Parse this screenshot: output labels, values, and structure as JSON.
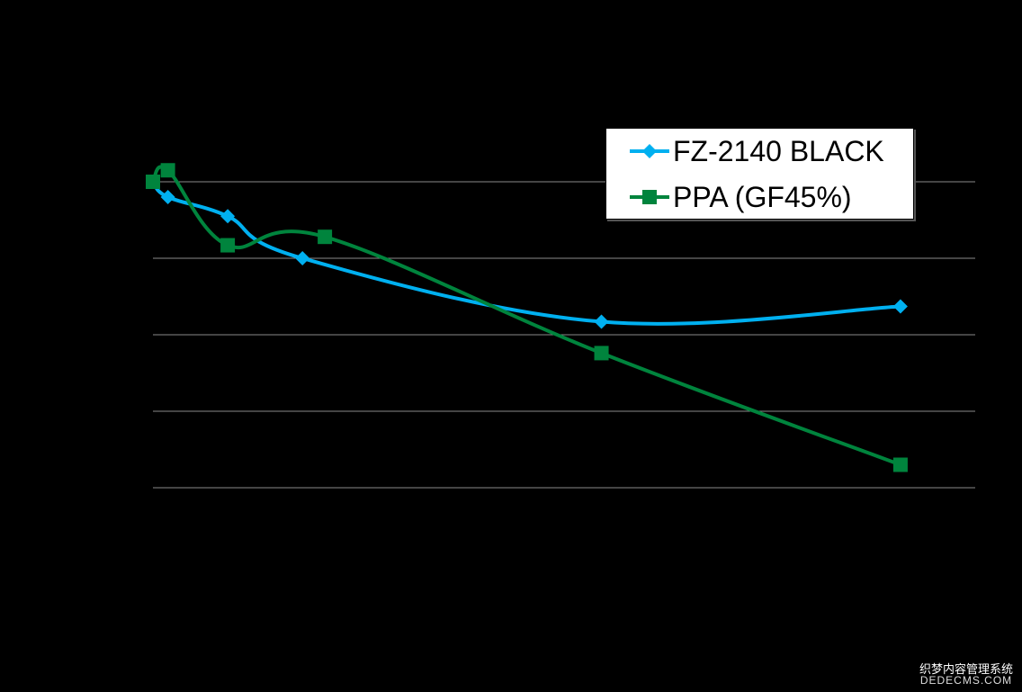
{
  "chart_data": {
    "type": "line",
    "title": "",
    "xlabel": "",
    "ylabel": "",
    "grid": true,
    "legend_position": "top-right",
    "xlim": [
      0,
      550
    ],
    "ylim": [
      0,
      5
    ],
    "series": [
      {
        "name": "FZ-2140 BLACK",
        "color": "#00B0F0",
        "marker": "diamond",
        "smooth": true,
        "x": [
          0,
          10,
          50,
          100,
          300,
          500
        ],
        "y": [
          4.0,
          3.8,
          3.55,
          3.0,
          2.17,
          2.37
        ]
      },
      {
        "name": "PPA (GF45%)",
        "color": "#00843D",
        "marker": "square",
        "smooth": true,
        "x": [
          0,
          10,
          50,
          115,
          300,
          500
        ],
        "y": [
          4.0,
          4.15,
          3.17,
          3.28,
          1.76,
          0.3
        ]
      }
    ]
  },
  "watermark": {
    "cn": "织梦内容管理系统",
    "en": "DEDECMS.COM"
  }
}
